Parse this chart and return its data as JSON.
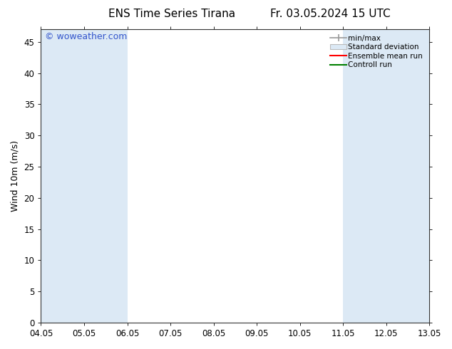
{
  "title_left": "ENS Time Series Tirana",
  "title_right": "Fr. 03.05.2024 15 UTC",
  "ylabel": "Wind 10m (m/s)",
  "watermark": "© woweather.com",
  "ylim": [
    0,
    47
  ],
  "yticks": [
    0,
    5,
    10,
    15,
    20,
    25,
    30,
    35,
    40,
    45
  ],
  "xtick_labels": [
    "04.05",
    "05.05",
    "06.05",
    "07.05",
    "08.05",
    "09.05",
    "10.05",
    "11.05",
    "12.05",
    "13.05"
  ],
  "shaded_ranges": [
    [
      0,
      1
    ],
    [
      1,
      2
    ],
    [
      7,
      8
    ],
    [
      8,
      9
    ]
  ],
  "shaded_color": "#dce9f5",
  "background_color": "#ffffff",
  "legend_labels": [
    "min/max",
    "Standard deviation",
    "Ensemble mean run",
    "Controll run"
  ],
  "legend_colors_lines": [
    "#999999",
    "#bbbbbb",
    "#ff0000",
    "#008000"
  ],
  "title_fontsize": 11,
  "label_fontsize": 9,
  "tick_fontsize": 8.5,
  "watermark_color": "#3355cc",
  "watermark_fontsize": 9
}
